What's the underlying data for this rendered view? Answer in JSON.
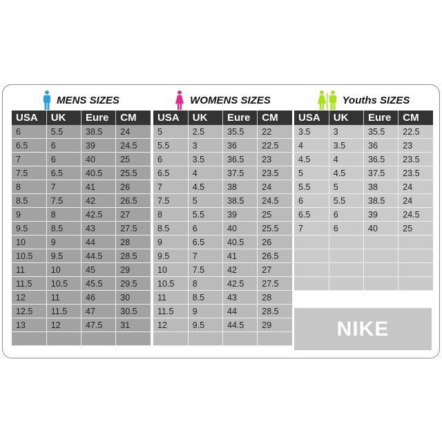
{
  "headers": [
    "USA",
    "UK",
    "Eure",
    "CM"
  ],
  "mens": {
    "title": "MENS  SIZES",
    "icon_color": "#2a9fe0",
    "rows": [
      [
        "6",
        "5.5",
        "38.5",
        "24"
      ],
      [
        "6.5",
        "6",
        "39",
        "24.5"
      ],
      [
        "7",
        "6",
        "40",
        "25"
      ],
      [
        "7.5",
        "6.5",
        "40.5",
        "25.5"
      ],
      [
        "8",
        "7",
        "41",
        "26"
      ],
      [
        "8.5",
        "7.5",
        "42",
        "26.5"
      ],
      [
        "9",
        "8",
        "42.5",
        "27"
      ],
      [
        "9.5",
        "8.5",
        "43",
        "27.5"
      ],
      [
        "10",
        "9",
        "44",
        "28"
      ],
      [
        "10.5",
        "9.5",
        "44.5",
        "28.5"
      ],
      [
        "11",
        "10",
        "45",
        "29"
      ],
      [
        "11.5",
        "10.5",
        "45.5",
        "29.5"
      ],
      [
        "12",
        "11",
        "46",
        "30"
      ],
      [
        "12.5",
        "11.5",
        "47",
        "30.5"
      ],
      [
        "13",
        "12",
        "47.5",
        "31"
      ],
      [
        "",
        "",
        "",
        ""
      ]
    ]
  },
  "womens": {
    "title": "WOMENS  SIZES",
    "icon_color": "#e8278a",
    "rows": [
      [
        "5",
        "2.5",
        "35.5",
        "22"
      ],
      [
        "5.5",
        "3",
        "36",
        "22.5"
      ],
      [
        "6",
        "3.5",
        "36.5",
        "23"
      ],
      [
        "6.5",
        "4",
        "37.5",
        "23.5"
      ],
      [
        "7",
        "4.5",
        "38",
        "24"
      ],
      [
        "7.5",
        "5",
        "38.5",
        "24.5"
      ],
      [
        "8",
        "5.5",
        "39",
        "25"
      ],
      [
        "8.5",
        "6",
        "40",
        "25.5"
      ],
      [
        "9",
        "6.5",
        "40.5",
        "26"
      ],
      [
        "9.5",
        "7",
        "41",
        "26.5"
      ],
      [
        "10",
        "7.5",
        "42",
        "27"
      ],
      [
        "10.5",
        "8",
        "42.5",
        "27.5"
      ],
      [
        "11",
        "8.5",
        "43",
        "28"
      ],
      [
        "11.5",
        "9",
        "44",
        "28.5"
      ],
      [
        "12",
        "9.5",
        "44.5",
        "29"
      ],
      [
        "",
        "",
        "",
        ""
      ]
    ]
  },
  "youths": {
    "title": "Youths  SIZES",
    "icon_color": "#a6e21a",
    "rows": [
      [
        "3.5",
        "3",
        "35.5",
        "22.5"
      ],
      [
        "4",
        "3.5",
        "36",
        "23"
      ],
      [
        "4.5",
        "4",
        "36.5",
        "23.5"
      ],
      [
        "5",
        "4.5",
        "37.5",
        "23.5"
      ],
      [
        "5.5",
        "5",
        "38",
        "24"
      ],
      [
        "6",
        "5.5",
        "38.5",
        "24"
      ],
      [
        "6.5",
        "6",
        "39",
        "24.5"
      ],
      [
        "7",
        "6",
        "40",
        "25"
      ],
      [
        "",
        "",
        "",
        ""
      ],
      [
        "",
        "",
        "",
        ""
      ],
      [
        "",
        "",
        "",
        ""
      ],
      [
        "",
        "",
        "",
        ""
      ]
    ]
  },
  "brand": "NIKE"
}
